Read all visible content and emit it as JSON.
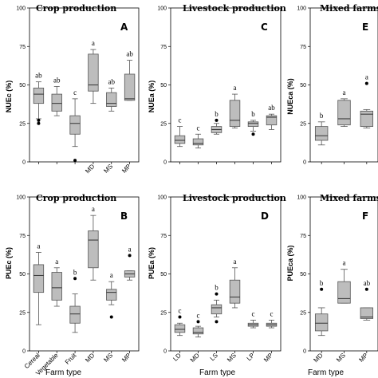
{
  "x_axis_label": "Farm type",
  "chart_data": [
    {
      "type": "box",
      "title": "Crop production",
      "panel_letter": "A",
      "ylabel": "NUEc (%)",
      "ylim": [
        0,
        100
      ],
      "yticks": [
        0,
        25,
        50,
        75,
        100
      ],
      "categories": [
        "",
        "",
        "",
        "MD",
        "MS",
        "MP"
      ],
      "boxes": [
        {
          "min": 28,
          "q1": 38,
          "median": 44,
          "q3": 48,
          "max": 52,
          "outliers": [
            25,
            27
          ],
          "sig": "ab"
        },
        {
          "min": 30,
          "q1": 33,
          "median": 38,
          "q3": 44,
          "max": 49,
          "outliers": [],
          "sig": "ab"
        },
        {
          "min": 10,
          "q1": 18,
          "median": 25,
          "q3": 30,
          "max": 41,
          "outliers": [
            1
          ],
          "sig": "c"
        },
        {
          "min": 38,
          "q1": 46,
          "median": 50,
          "q3": 70,
          "max": 73,
          "outliers": [],
          "sig": "a"
        },
        {
          "min": 33,
          "q1": 36,
          "median": 38,
          "q3": 45,
          "max": 48,
          "outliers": [],
          "sig": "ab"
        },
        {
          "min": 40,
          "q1": 40,
          "median": 41,
          "q3": 57,
          "max": 66,
          "outliers": [],
          "sig": "ab"
        }
      ]
    },
    {
      "type": "box",
      "title": "Livestock production",
      "panel_letter": "C",
      "ylabel": "NUEa (%)",
      "ylim": [
        0,
        100
      ],
      "yticks": [
        0,
        25,
        50,
        75,
        100
      ],
      "categories": [
        "",
        "",
        "",
        "",
        "",
        ""
      ],
      "boxes": [
        {
          "min": 10,
          "q1": 12,
          "median": 14,
          "q3": 17,
          "max": 23,
          "outliers": [],
          "sig": "c"
        },
        {
          "min": 9,
          "q1": 11,
          "median": 12,
          "q3": 15,
          "max": 18,
          "outliers": [],
          "sig": "c"
        },
        {
          "min": 18,
          "q1": 19,
          "median": 21,
          "q3": 23,
          "max": 25,
          "outliers": [
            27
          ],
          "sig": "b"
        },
        {
          "min": 22,
          "q1": 23,
          "median": 27,
          "q3": 40,
          "max": 44,
          "outliers": [],
          "sig": "a"
        },
        {
          "min": 20,
          "q1": 23,
          "median": 25,
          "q3": 26,
          "max": 27,
          "outliers": [
            18
          ],
          "sig": "b"
        },
        {
          "min": 21,
          "q1": 24,
          "median": 29,
          "q3": 30,
          "max": 31,
          "outliers": [],
          "sig": "ab"
        }
      ]
    },
    {
      "type": "box",
      "title": "Mixed farms",
      "panel_letter": "E",
      "ylabel": "NUEca (%)",
      "ylim": [
        0,
        100
      ],
      "yticks": [
        0,
        25,
        50,
        75,
        100
      ],
      "categories": [
        "",
        "",
        ""
      ],
      "boxes": [
        {
          "min": 11,
          "q1": 14,
          "median": 17,
          "q3": 23,
          "max": 26,
          "outliers": [],
          "sig": "b"
        },
        {
          "min": 23,
          "q1": 24,
          "median": 28,
          "q3": 40,
          "max": 41,
          "outliers": [],
          "sig": "a"
        },
        {
          "min": 22,
          "q1": 23,
          "median": 31,
          "q3": 33,
          "max": 34,
          "outliers": [
            51
          ],
          "sig": "a"
        }
      ]
    },
    {
      "type": "box",
      "title": "Crop production",
      "panel_letter": "B",
      "ylabel": "PUEc (%)",
      "ylim": [
        0,
        100
      ],
      "yticks": [
        0,
        25,
        50,
        75,
        100
      ],
      "categories": [
        "Cereal",
        "Vegetable",
        "Fruit",
        "MD",
        "MS",
        "MP"
      ],
      "boxes": [
        {
          "min": 17,
          "q1": 38,
          "median": 49,
          "q3": 56,
          "max": 64,
          "outliers": [],
          "sig": "a"
        },
        {
          "min": 29,
          "q1": 33,
          "median": 41,
          "q3": 51,
          "max": 54,
          "outliers": [],
          "sig": "a"
        },
        {
          "min": 12,
          "q1": 18,
          "median": 24,
          "q3": 29,
          "max": 37,
          "outliers": [
            47
          ],
          "sig": "b"
        },
        {
          "min": 46,
          "q1": 54,
          "median": 72,
          "q3": 78,
          "max": 88,
          "outliers": [],
          "sig": "a"
        },
        {
          "min": 30,
          "q1": 33,
          "median": 38,
          "q3": 40,
          "max": 45,
          "outliers": [
            22
          ],
          "sig": "a"
        },
        {
          "min": 46,
          "q1": 48,
          "median": 50,
          "q3": 52,
          "max": 52,
          "outliers": [
            62
          ],
          "sig": "a"
        }
      ]
    },
    {
      "type": "box",
      "title": "Livestock production",
      "panel_letter": "D",
      "ylabel": "PUEa (%)",
      "ylim": [
        0,
        100
      ],
      "yticks": [
        0,
        25,
        50,
        75,
        100
      ],
      "categories": [
        "LD",
        "MD",
        "LS",
        "MS",
        "LP",
        "MP"
      ],
      "boxes": [
        {
          "min": 10,
          "q1": 12,
          "median": 14,
          "q3": 17,
          "max": 18,
          "outliers": [
            22
          ],
          "sig": "c"
        },
        {
          "min": 9,
          "q1": 11,
          "median": 12,
          "q3": 15,
          "max": 16,
          "outliers": [
            19
          ],
          "sig": "c"
        },
        {
          "min": 22,
          "q1": 24,
          "median": 28,
          "q3": 30,
          "max": 33,
          "outliers": [
            37,
            19
          ],
          "sig": "b"
        },
        {
          "min": 28,
          "q1": 31,
          "median": 35,
          "q3": 46,
          "max": 54,
          "outliers": [],
          "sig": "a"
        },
        {
          "min": 15,
          "q1": 16,
          "median": 17,
          "q3": 18,
          "max": 20,
          "outliers": [],
          "sig": "c"
        },
        {
          "min": 15,
          "q1": 16,
          "median": 17,
          "q3": 18,
          "max": 20,
          "outliers": [],
          "sig": "c"
        }
      ]
    },
    {
      "type": "box",
      "title": "Mixed farms",
      "panel_letter": "F",
      "ylabel": "PUEca (%)",
      "ylim": [
        0,
        100
      ],
      "yticks": [
        0,
        25,
        50,
        75,
        100
      ],
      "categories": [
        "MD",
        "MS",
        "MP"
      ],
      "boxes": [
        {
          "min": 10,
          "q1": 13,
          "median": 18,
          "q3": 24,
          "max": 28,
          "outliers": [
            40
          ],
          "sig": "b"
        },
        {
          "min": 31,
          "q1": 31,
          "median": 34,
          "q3": 45,
          "max": 53,
          "outliers": [],
          "sig": "a"
        },
        {
          "min": 20,
          "q1": 21,
          "median": 22,
          "q3": 28,
          "max": 28,
          "outliers": [
            40
          ],
          "sig": "ab"
        }
      ]
    }
  ]
}
